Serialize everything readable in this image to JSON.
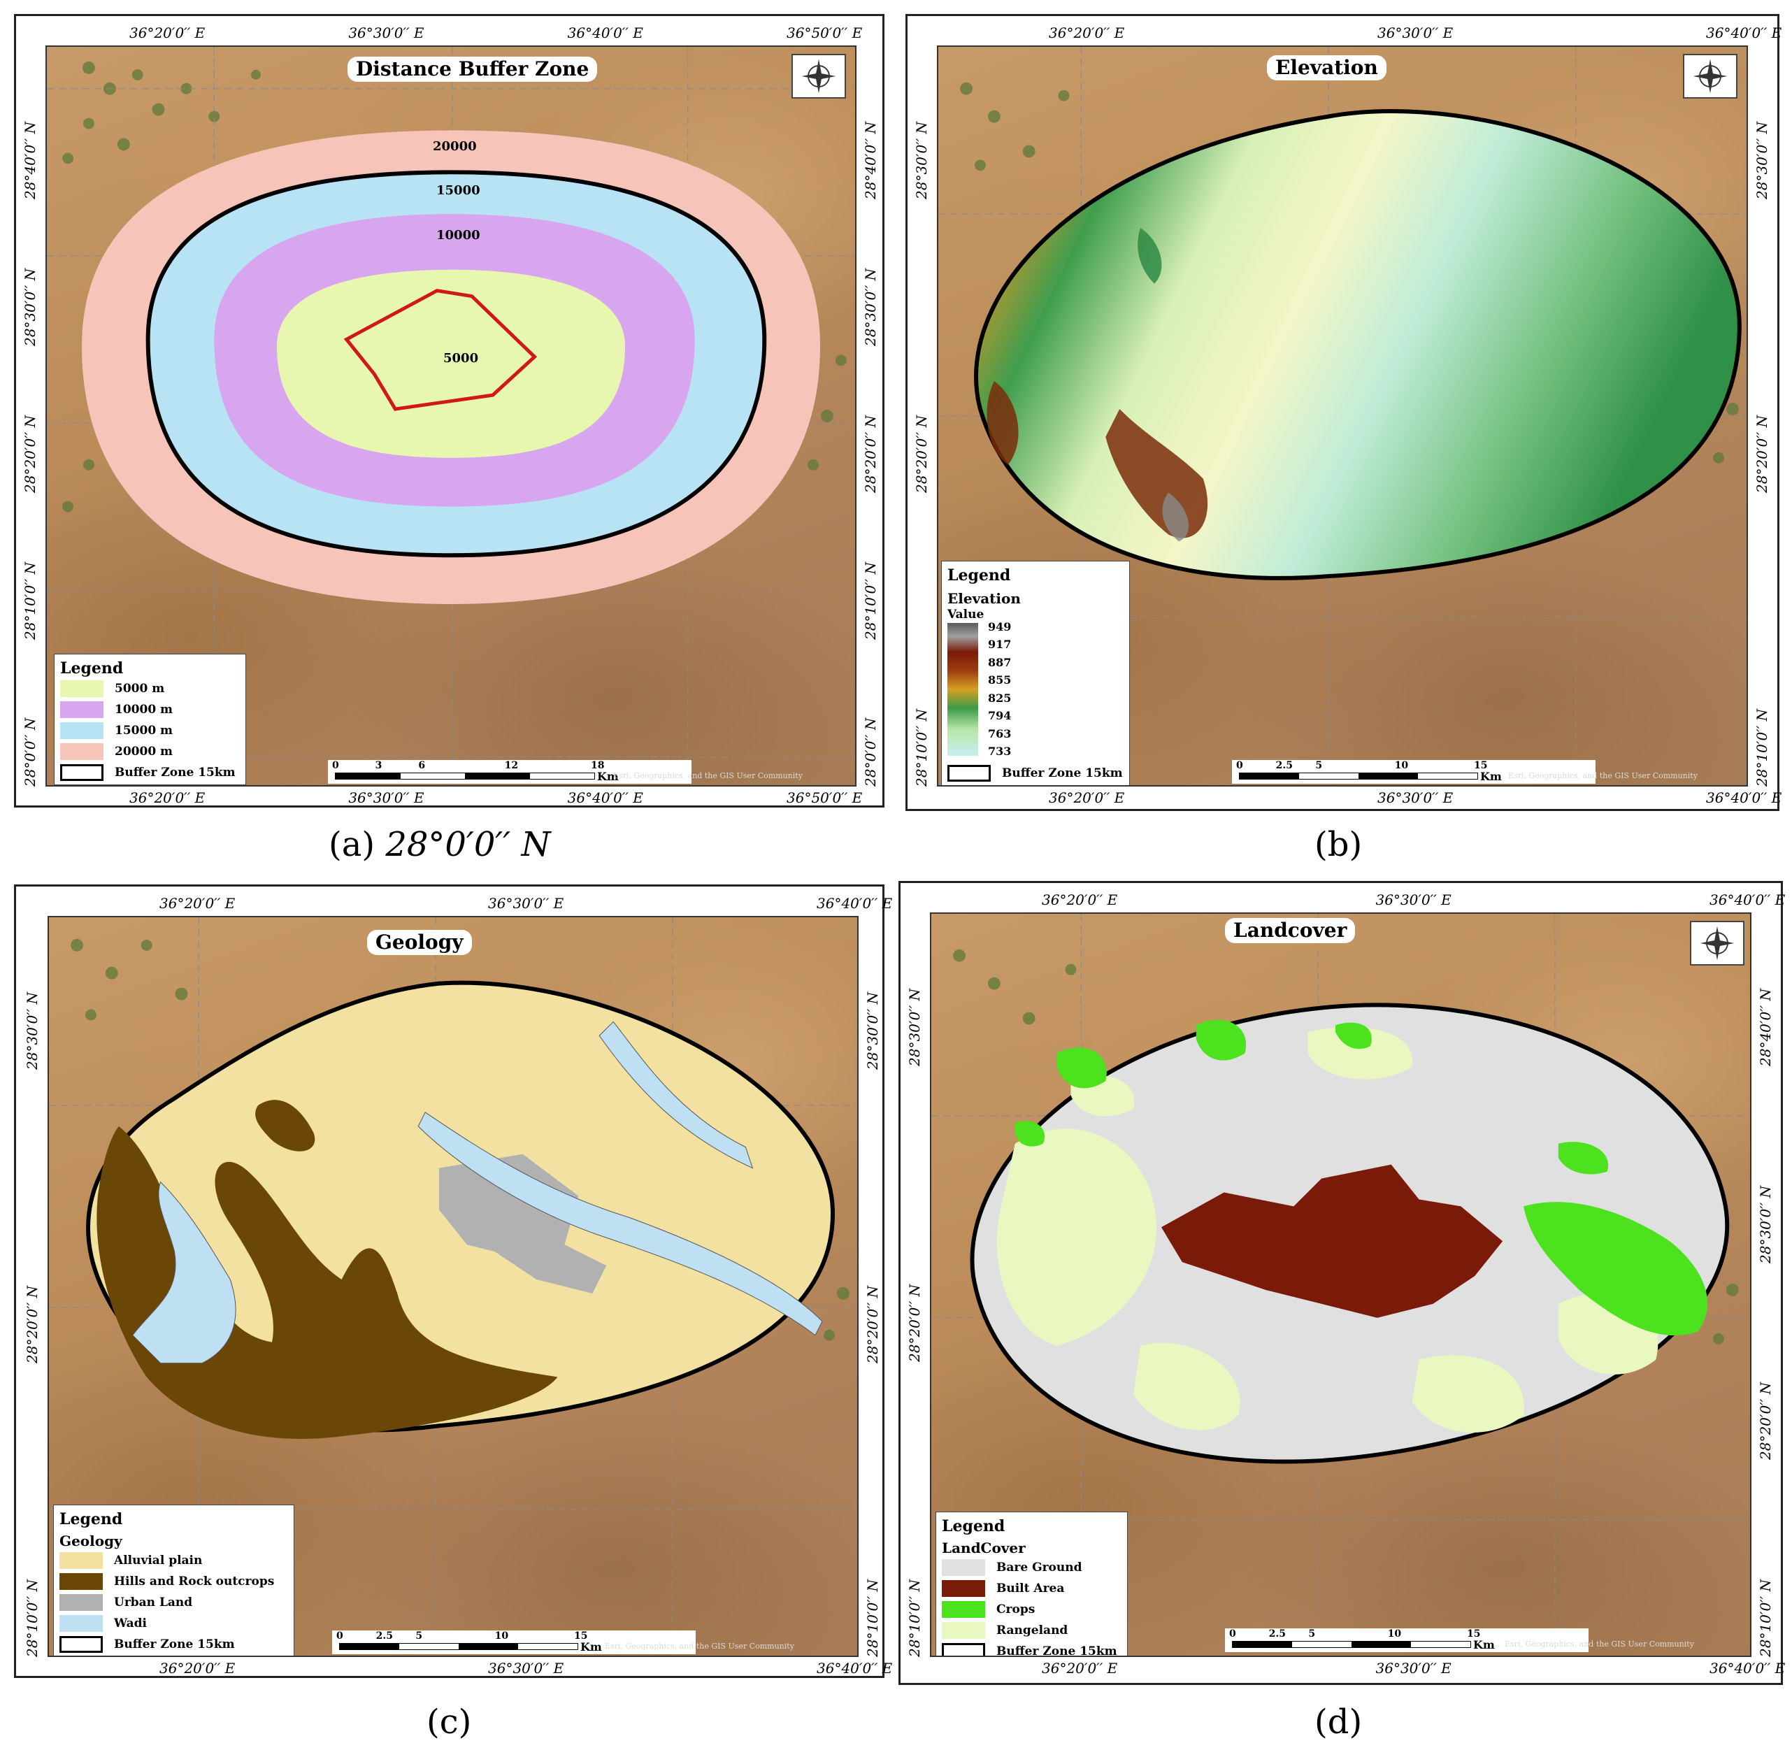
{
  "panels": {
    "a": {
      "title": "Distance Buffer Zone",
      "caption_letter": "a",
      "caption_text": "28°0′0′′ N",
      "coords_top": [
        "36°20′0′′ E",
        "36°30′0′′ E",
        "36°40′0′′ E",
        "36°50′0′′ E"
      ],
      "coords_bottom": [
        "36°20′0′′ E",
        "36°30′0′′ E",
        "36°40′0′′ E",
        "36°50′0′′ E"
      ],
      "coords_left": [
        "28°40′0′′ N",
        "28°30′0′′ N",
        "28°20′0′′ N",
        "28°10′0′′ N",
        "28°0′0′′ N"
      ],
      "coords_right": [
        "28°40′0′′ N",
        "28°30′0′′ N",
        "28°20′0′′ N",
        "28°10′0′′ N",
        "28°0′0′′ N"
      ],
      "ring_labels": [
        "20000",
        "15000",
        "10000",
        "5000"
      ],
      "legend_title": "Legend",
      "legend_items": [
        {
          "label": "5000 m",
          "color": "#e8f7b0"
        },
        {
          "label": "10000 m",
          "color": "#d8a6ee"
        },
        {
          "label": "15000 m",
          "color": "#b8e3f5"
        },
        {
          "label": "20000 m",
          "color": "#f7c4ba"
        },
        {
          "label": "Buffer Zone 15km",
          "color": "#ffffff"
        }
      ],
      "scale_ticks": [
        "0",
        "3",
        "6",
        "12",
        "18"
      ],
      "scale_unit": "Km",
      "credit": "Esri, Geographics, and the GIS User Community"
    },
    "b": {
      "title": "Elevation",
      "caption_letter": "b",
      "coords_top": [
        "36°20′0′′ E",
        "36°30′0′′ E",
        "36°40′0′′ E"
      ],
      "coords_bottom": [
        "36°20′0′′ E",
        "36°30′0′′ E",
        "36°40′0′′ E"
      ],
      "coords_left": [
        "28°30′0′′ N",
        "28°20′0′′ N",
        "28°10′0′′ N"
      ],
      "coords_right": [
        "28°30′0′′ N",
        "28°20′0′′ N",
        "28°10′0′′ N"
      ],
      "legend_title": "Legend",
      "legend_subtitle": "Elevation",
      "legend_value": "Value",
      "ramp_values": [
        "949",
        "917",
        "887",
        "855",
        "825",
        "794",
        "763",
        "733"
      ],
      "buffer_label": "Buffer Zone 15km",
      "scale_ticks": [
        "0",
        "2.5",
        "5",
        "10",
        "15"
      ],
      "scale_unit": "Km",
      "credit": "Esri, Geographics, and the GIS User Community"
    },
    "c": {
      "title": "Geology",
      "caption_letter": "c",
      "coords_top": [
        "36°20′0′′ E",
        "36°30′0′′ E",
        "36°40′0′′ E"
      ],
      "coords_bottom": [
        "36°20′0′′ E",
        "36°30′0′′ E",
        "36°40′0′′ E"
      ],
      "coords_left": [
        "28°30′0′′ N",
        "28°20′0′′ N",
        "28°10′0′′ N"
      ],
      "coords_right": [
        "28°30′0′′ N",
        "28°20′0′′ N",
        "28°10′0′′ N"
      ],
      "legend_title": "Legend",
      "legend_subtitle": "Geology",
      "legend_items": [
        {
          "label": "Alluvial plain",
          "color": "#f2e1a0"
        },
        {
          "label": "Hills and Rock outcrops",
          "color": "#6b4707"
        },
        {
          "label": "Urban Land",
          "color": "#b1b1b1"
        },
        {
          "label": "Wadi",
          "color": "#bfe0f2"
        },
        {
          "label": "Buffer Zone 15km",
          "color": "#ffffff"
        }
      ],
      "scale_ticks": [
        "0",
        "2.5",
        "5",
        "10",
        "15"
      ],
      "scale_unit": "Km",
      "credit": "Esri, Geographics, and the GIS User Community"
    },
    "d": {
      "title": "Landcover",
      "caption_letter": "d",
      "coords_top": [
        "36°20′0′′ E",
        "36°30′0′′ E",
        "36°40′0′′ E"
      ],
      "coords_bottom": [
        "36°20′0′′ E",
        "36°30′0′′ E",
        "36°40′0′′ E"
      ],
      "coords_left": [
        "28°30′0′′ N",
        "28°20′0′′ N",
        "28°10′0′′ N"
      ],
      "coords_right": [
        "28°40′0′′ N",
        "28°30′0′′ N",
        "28°20′0′′ N",
        "28°10′0′′ N"
      ],
      "legend_title": "Legend",
      "legend_subtitle": "LandCover",
      "legend_items": [
        {
          "label": "Bare Ground",
          "color": "#e0e0e0"
        },
        {
          "label": "Built Area",
          "color": "#7a1a08"
        },
        {
          "label": "Crops",
          "color": "#4ce21e"
        },
        {
          "label": "Rangeland",
          "color": "#e9f7c0"
        },
        {
          "label": "Buffer Zone 15km",
          "color": "#ffffff"
        }
      ],
      "scale_ticks": [
        "0",
        "2.5",
        "5",
        "10",
        "15"
      ],
      "scale_unit": "Km",
      "credit": "Esri, Geographics, and the GIS User Community"
    }
  },
  "icons": {
    "north_arrow": "compass-rose-icon"
  }
}
